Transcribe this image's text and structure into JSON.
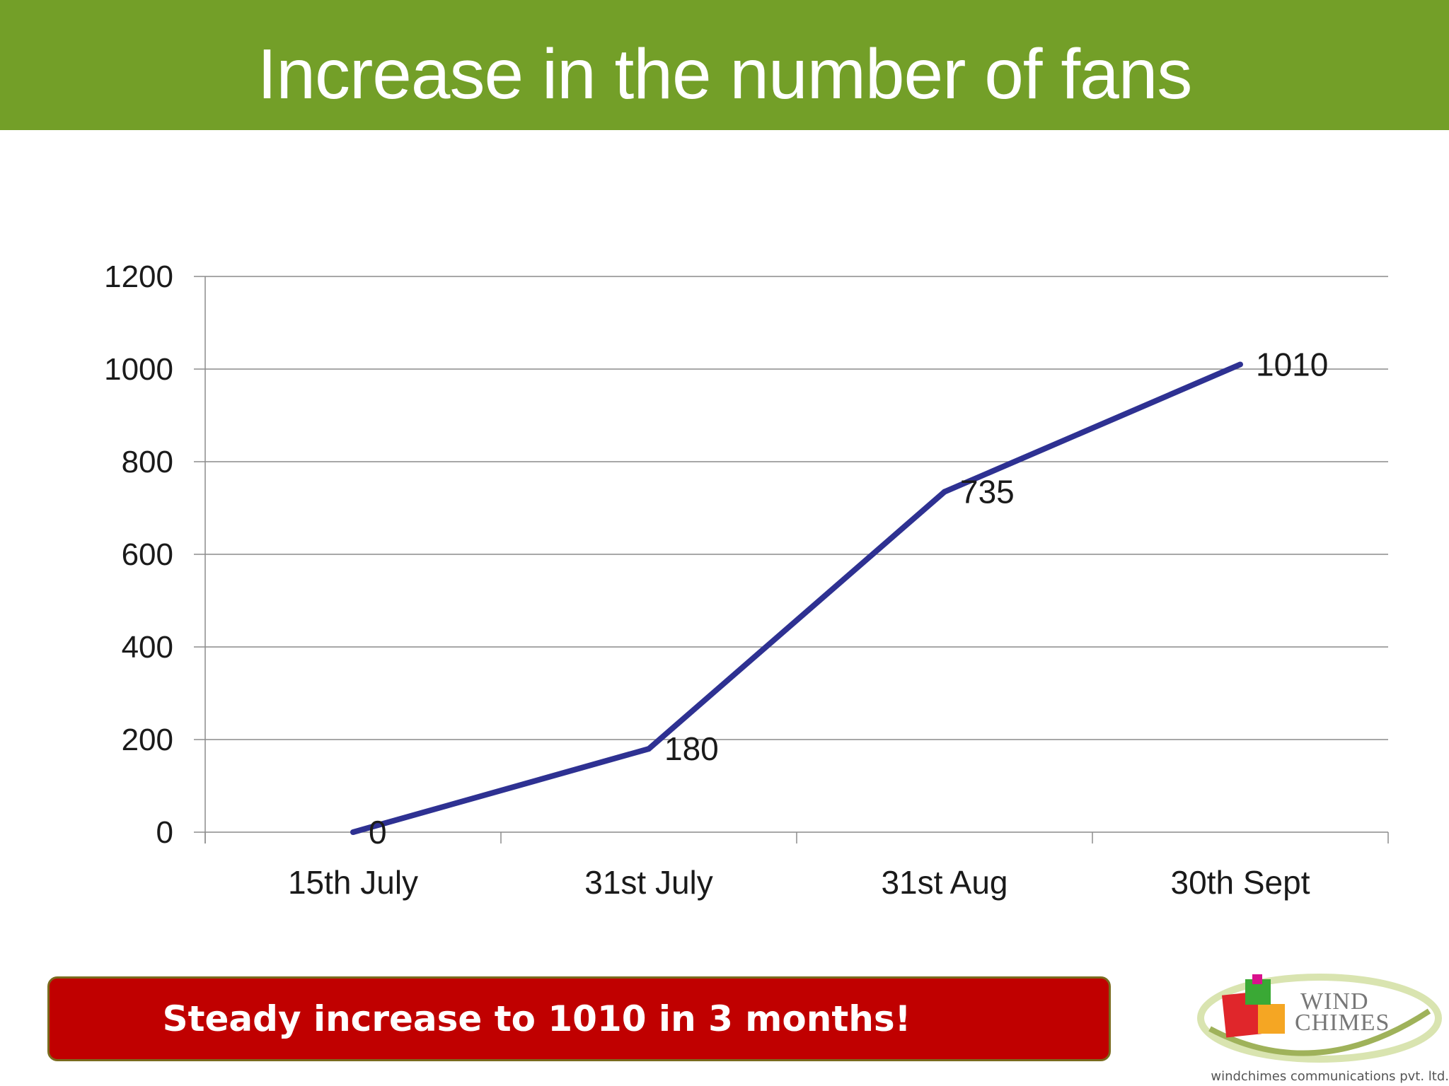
{
  "slide": {
    "title": "Increase in the number of fans",
    "callout": "Steady increase to 1010 in 3 months!"
  },
  "logo": {
    "line1": "WIND",
    "line2": "CHIMES",
    "tagline": "windchimes communications pvt. ltd."
  },
  "colors": {
    "title_bar": "#739f28",
    "line": "#2e3192",
    "callout": "#c00000",
    "grid": "#8c8c8c"
  },
  "chart_data": {
    "type": "line",
    "categories": [
      "15th July",
      "31st July",
      "31st Aug",
      "30th Sept"
    ],
    "series": [
      {
        "values": [
          0,
          180,
          735,
          1010
        ]
      }
    ],
    "data_labels": [
      "0",
      "180",
      "735",
      "1010"
    ],
    "yticks": [
      0,
      200,
      400,
      600,
      800,
      1000,
      1200
    ],
    "ylim": [
      0,
      1200
    ],
    "grid": true,
    "legend": "none",
    "title": "",
    "xlabel": "",
    "ylabel": ""
  }
}
